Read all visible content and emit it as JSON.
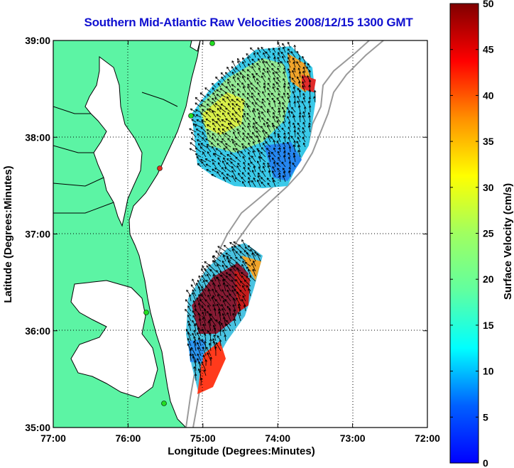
{
  "title": "Southern Mid-Atlantic Raw Velocities 2008/12/15 1300 GMT",
  "xaxis": {
    "label": "Longitude (Degrees:Minutes)",
    "ticks": [
      "77:00",
      "76:00",
      "75:00",
      "74:00",
      "73:00",
      "72:00"
    ]
  },
  "yaxis": {
    "label": "Latitude (Degrees:Minutes)",
    "ticks": [
      "39:00",
      "38:00",
      "37:00",
      "36:00",
      "35:00"
    ]
  },
  "colorbar": {
    "label": "Surface Velocity (cm/s)",
    "ticks": [
      "50",
      "45",
      "40",
      "35",
      "30",
      "25",
      "20",
      "15",
      "10",
      "5",
      "0"
    ],
    "min": 0,
    "max": 50
  },
  "colors": {
    "land": "#5cf4a4",
    "water": "#ffffff",
    "title": "#1010d0",
    "station": "#22dd22",
    "station_alt": "#e03020"
  },
  "map_extent": {
    "lon": [
      -77,
      -72
    ],
    "lat": [
      35,
      39
    ]
  }
}
